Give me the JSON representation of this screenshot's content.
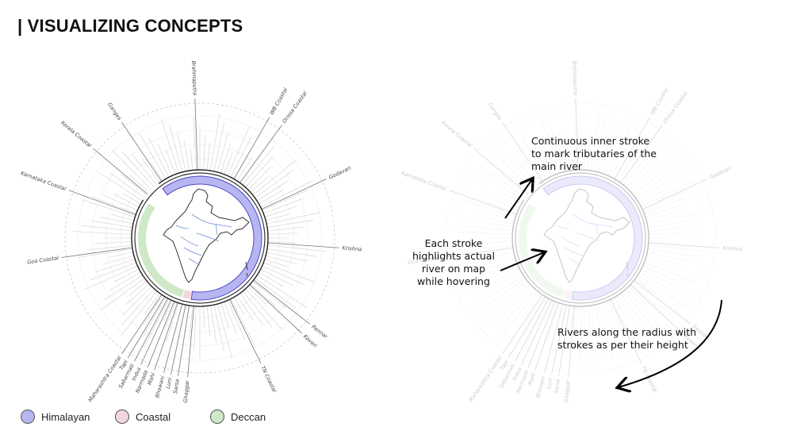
{
  "header": {
    "title": "| VISUALIZING CONCEPTS"
  },
  "legend": [
    {
      "label": "Himalayan",
      "color": "#b8b6f1"
    },
    {
      "label": "Coastal",
      "color": "#f2d6de"
    },
    {
      "label": "Deccan",
      "color": "#cfe8c7"
    }
  ],
  "annotations": {
    "inner_stroke": "Continuous inner stroke\nto mark tributaries of the\nmain river",
    "hover": "Each stroke\nhighlights actual\nriver on map\nwhile hovering",
    "radius": "Rivers along the radius with\nstrokes as per their height"
  },
  "rivers": [
    {
      "name": "Brahmaputra",
      "angle": 92
    },
    {
      "name": "WB Coastal",
      "angle": 60
    },
    {
      "name": "Orissa Coastal",
      "angle": 54
    },
    {
      "name": "Godavari",
      "angle": 25
    },
    {
      "name": "Krishna",
      "angle": -4
    },
    {
      "name": "Pennar",
      "angle": -38
    },
    {
      "name": "Kaveri",
      "angle": -43
    },
    {
      "name": "TN Coastal",
      "angle": -64
    },
    {
      "name": "Ghaggar",
      "angle": -95
    },
    {
      "name": "Sarsa",
      "angle": -99
    },
    {
      "name": "Luni",
      "angle": -102
    },
    {
      "name": "Bhawani",
      "angle": -105
    },
    {
      "name": "Mahi",
      "angle": -109
    },
    {
      "name": "Narmada",
      "angle": -112
    },
    {
      "name": "Indus",
      "angle": -115
    },
    {
      "name": "Sabarmati",
      "angle": -118
    },
    {
      "name": "Tapi",
      "angle": -121
    },
    {
      "name": "Maharashtra Coastal",
      "angle": -124
    },
    {
      "name": "Goa Coastal",
      "angle": -172
    },
    {
      "name": "Karnataka Coastal",
      "angle": 160
    },
    {
      "name": "Kerela Coastal",
      "angle": 140
    },
    {
      "name": "Ganges",
      "angle": 124
    }
  ],
  "basins": {
    "himalayan": {
      "start": 127,
      "end": -98,
      "color": "#b8b6f1"
    },
    "coastal": {
      "start": -99,
      "end": -106,
      "color": "#f2d6de"
    },
    "deccan": {
      "start": -107,
      "end": -214,
      "color": "#cfe8c7"
    }
  }
}
